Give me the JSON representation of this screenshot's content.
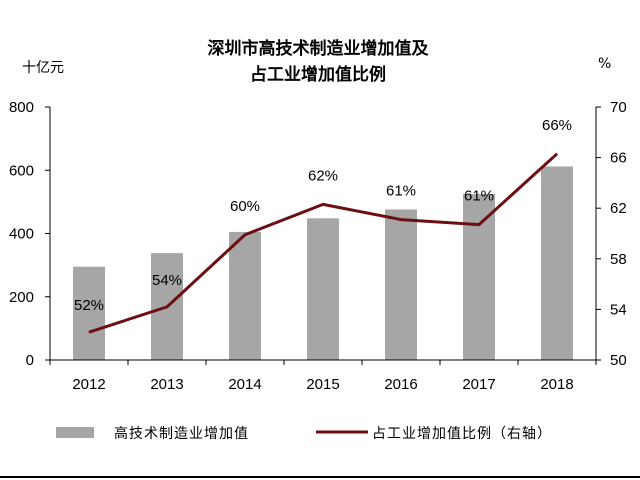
{
  "chart_data": {
    "type": "bar+line",
    "title_lines": [
      "深圳市高技术制造业增加值及",
      "占工业增加值比例"
    ],
    "left_unit": "十亿元",
    "right_unit": "%",
    "categories": [
      "2012",
      "2013",
      "2014",
      "2015",
      "2016",
      "2017",
      "2018"
    ],
    "series": [
      {
        "name": "高技术制造业增加值",
        "type": "bar",
        "axis": "left",
        "color": "#a6a6a6",
        "values": [
          295,
          338,
          405,
          448,
          476,
          525,
          612
        ]
      },
      {
        "name": "占工业增加值比例（右轴）",
        "type": "line",
        "axis": "right",
        "color": "#6b0f12",
        "values": [
          52.2,
          54.2,
          59.9,
          62.3,
          61.1,
          60.7,
          66.3
        ],
        "labels": [
          "52%",
          "54%",
          "60%",
          "62%",
          "61%",
          "61%",
          "66%"
        ]
      }
    ],
    "left_axis": {
      "min": 0,
      "max": 800,
      "ticks": [
        "0",
        "200",
        "400",
        "600",
        "800"
      ]
    },
    "right_axis": {
      "min": 50,
      "max": 70,
      "ticks": [
        "50",
        "54",
        "58",
        "62",
        "66",
        "70"
      ]
    },
    "legend_position": "bottom"
  }
}
